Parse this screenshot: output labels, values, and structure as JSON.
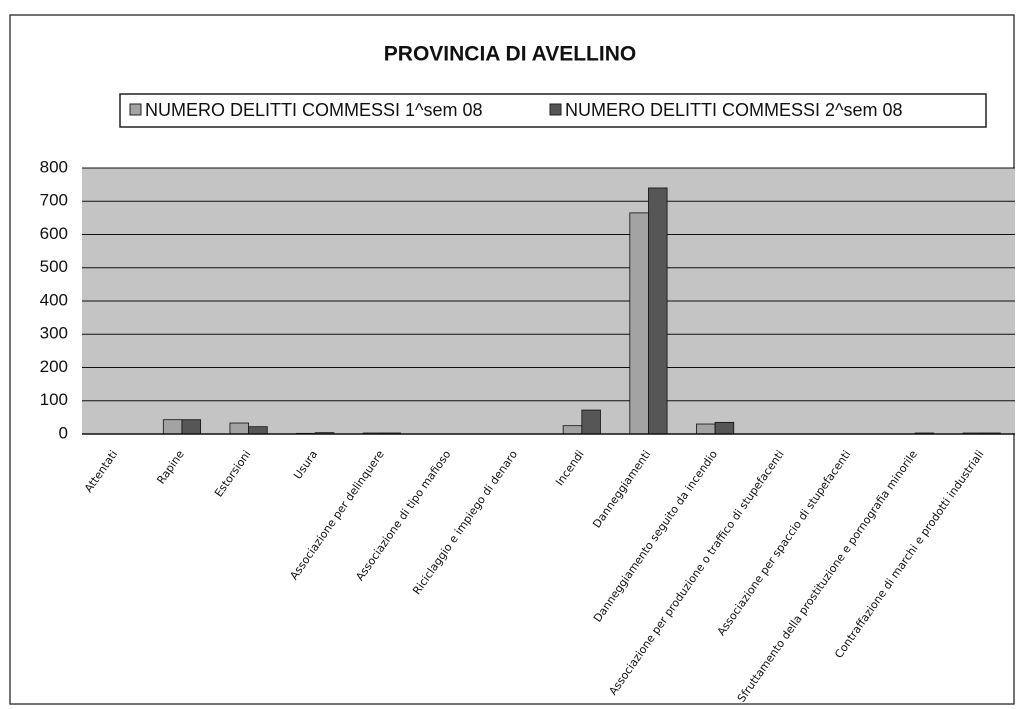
{
  "chart_data": {
    "type": "bar",
    "title": "PROVINCIA DI AVELLINO",
    "categories": [
      "Attentati",
      "Rapine",
      "Estorsioni",
      "Usura",
      "Associazione per delinquere",
      "Associazione di tipo mafioso",
      "Riciclaggio e impiego di denaro",
      "Incendi",
      "Danneggiamenti",
      "Danneggiamento seguito da incendio",
      "Associazione per produzione o traffico di stupefacenti",
      "Associazione per spaccio di stupefacenti",
      "Sfruttamento della prostituzione e pornografia minorile",
      "Contraffazione di marchi e prodotti industriali"
    ],
    "series": [
      {
        "name": "NUMERO DELITTI COMMESSI 1^sem 08",
        "color": "#a3a3a3",
        "values": [
          0,
          43,
          33,
          2,
          3,
          0,
          0,
          25,
          665,
          30,
          0,
          0,
          0,
          3
        ]
      },
      {
        "name": "NUMERO DELITTI COMMESSI 2^sem 08",
        "color": "#565656",
        "values": [
          0,
          43,
          22,
          4,
          3,
          0,
          0,
          72,
          740,
          35,
          0,
          0,
          3,
          3
        ]
      }
    ],
    "ylim": [
      0,
      800
    ],
    "yticks": [
      0,
      100,
      200,
      300,
      400,
      500,
      600,
      700,
      800
    ],
    "grid": true,
    "legend": "top"
  }
}
